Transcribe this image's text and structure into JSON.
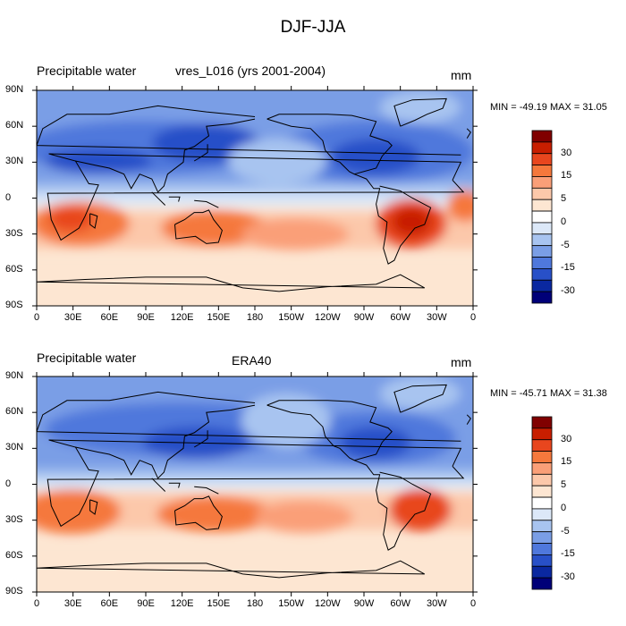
{
  "title": "DJF-JJA",
  "panels": [
    {
      "left_title": "Precipitable water",
      "center_title": "vres_L016 (yrs 2001-2004)",
      "units": "mm",
      "min_max": "MIN = -49.19 MAX =  31.05"
    },
    {
      "left_title": "Precipitable water",
      "center_title": "ERA40",
      "units": "mm",
      "min_max": "MIN = -45.71 MAX =  31.38"
    }
  ],
  "lat_labels": [
    "90N",
    "60N",
    "30N",
    "0",
    "30S",
    "60S",
    "90S"
  ],
  "lon_labels": [
    "0",
    "30E",
    "60E",
    "90E",
    "120E",
    "150E",
    "180",
    "150W",
    "120W",
    "90W",
    "60W",
    "30W",
    "0"
  ],
  "colorbar": {
    "colors": [
      "#800000",
      "#c81e00",
      "#e8461e",
      "#f5783c",
      "#fa9f78",
      "#fcc8aa",
      "#fde6d2",
      "#ffffff",
      "#dce8f8",
      "#a8c4f0",
      "#7a9ee6",
      "#4f78dc",
      "#2850c8",
      "#0a28a0",
      "#000078"
    ],
    "labels": [
      "30",
      "15",
      "5",
      "0",
      "-5",
      "-15",
      "-30"
    ]
  }
}
